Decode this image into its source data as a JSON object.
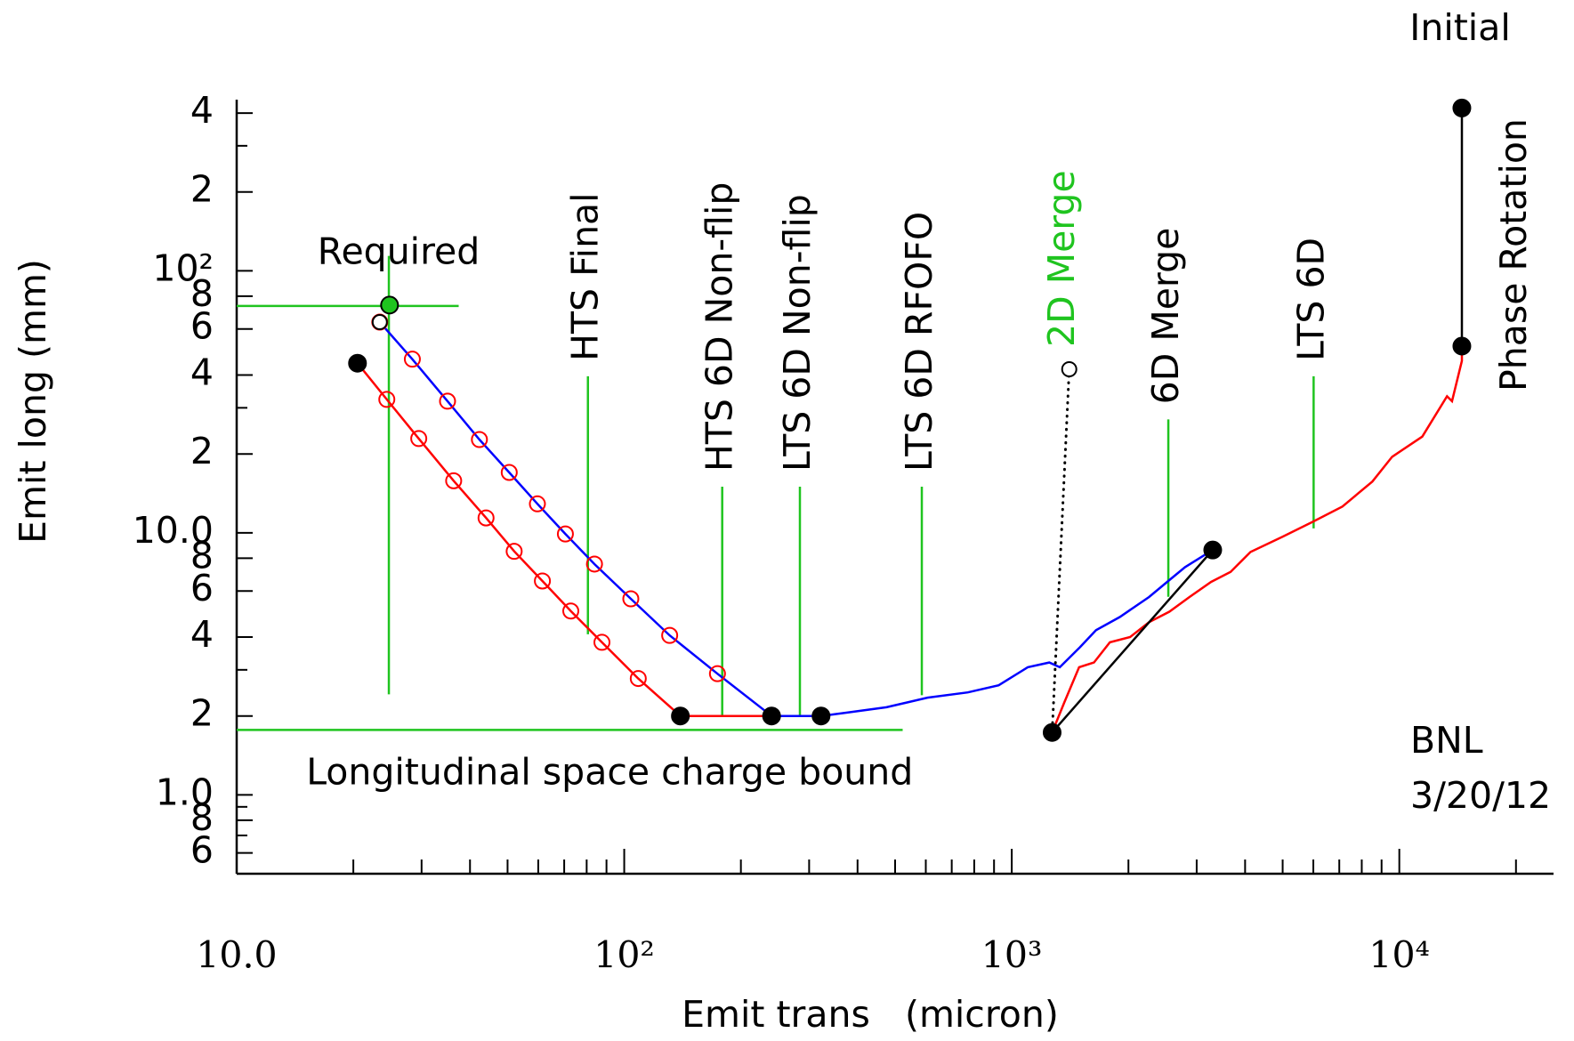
{
  "chart_data": {
    "type": "line",
    "x_label": "Emit trans   (micron)",
    "y_label": "Emit long (mm)",
    "x_log": true,
    "y_log": true,
    "xlim": [
      10,
      25000
    ],
    "ylim": [
      0.5,
      450
    ],
    "xticks": [
      {
        "value": 10,
        "label": "10.0"
      },
      {
        "value": 100,
        "label": "10²"
      },
      {
        "value": 1000,
        "label": "10³"
      },
      {
        "value": 10000,
        "label": "10⁴"
      }
    ],
    "xminor_ticks": [
      20,
      30,
      40,
      50,
      60,
      70,
      80,
      90,
      200,
      300,
      400,
      500,
      600,
      700,
      800,
      900,
      2000,
      3000,
      4000,
      5000,
      6000,
      7000,
      8000,
      9000,
      20000
    ],
    "yticks": [
      {
        "value": 400,
        "label": "4"
      },
      {
        "value": 200,
        "label": "2"
      },
      {
        "value": 100,
        "label": "10²"
      },
      {
        "value": 80,
        "label": "8"
      },
      {
        "value": 60,
        "label": "6"
      },
      {
        "value": 40,
        "label": "4"
      },
      {
        "value": 20,
        "label": "2"
      },
      {
        "value": 10,
        "label": "10.0"
      },
      8,
      6,
      4,
      2,
      {
        "value": 1,
        "label": "1.0"
      },
      {
        "value": 0.8,
        "label": "8"
      },
      {
        "value": 0.6,
        "label": "6"
      }
    ],
    "yminor_ticks": [
      300,
      30,
      3,
      0.9,
      0.7
    ],
    "series": [
      {
        "color": "#ff0000",
        "marker": "open-circle",
        "x": [
          20.5,
          24.4,
          29.5,
          36.3,
          44,
          52,
          61.5,
          72.8,
          87.6,
          108.7,
          139.6,
          240
        ],
        "values": [
          44.4,
          32.3,
          22.9,
          15.8,
          11.4,
          8.5,
          6.55,
          5.03,
          3.82,
          2.78,
          2.0,
          2.0
        ]
      },
      {
        "color": "#0000ff",
        "marker": "open-circle",
        "marker_color": "#ff0000",
        "x": [
          23.4,
          28.4,
          35,
          42.3,
          50.5,
          59.7,
          70.5,
          83.8,
          104,
          131,
          174,
          240
        ],
        "values": [
          63.7,
          46,
          31.8,
          22.7,
          17,
          12.9,
          9.9,
          7.6,
          5.6,
          4.06,
          2.9,
          2.0
        ]
      },
      {
        "color": "#0000ff",
        "x": [
          240,
          322,
          376,
          475,
          606,
          770,
          925,
          1100,
          1250,
          1330,
          1500,
          1650,
          1900,
          2260,
          2550,
          2800,
          3300
        ],
        "values": [
          2.0,
          2.0,
          2.06,
          2.16,
          2.35,
          2.46,
          2.62,
          3.07,
          3.2,
          3.07,
          3.66,
          4.25,
          4.77,
          5.69,
          6.6,
          7.4,
          8.6
        ]
      },
      {
        "color": "#ff0000",
        "x": [
          1271,
          1366,
          1492,
          1630,
          1791,
          2020,
          2260,
          2550,
          2880,
          3270,
          3670,
          4130,
          4990,
          5960,
          7130,
          8520,
          9580,
          11460,
          13280,
          13680,
          14500,
          14500
        ],
        "values": [
          1.73,
          2.25,
          3.07,
          3.2,
          3.82,
          4.0,
          4.56,
          5.0,
          5.7,
          6.5,
          7.1,
          8.45,
          9.65,
          11.0,
          12.6,
          15.7,
          19.5,
          23.3,
          33.2,
          31.8,
          45.3,
          51.6
        ]
      },
      {
        "color": "#000000",
        "x": [
          1271,
          3300
        ],
        "values": [
          1.73,
          8.6
        ]
      },
      {
        "color": "#000000",
        "x": [
          14500,
          14500
        ],
        "values": [
          418,
          51.6
        ]
      },
      {
        "color": "#000000",
        "dash": "dotted",
        "x": [
          1407,
          1271
        ],
        "values": [
          42.1,
          1.73
        ]
      }
    ],
    "points": [
      {
        "style": "filled",
        "color": "#000000",
        "x": [
          20.5,
          139.6,
          240,
          322,
          1271,
          3300,
          14500,
          14500
        ],
        "y": [
          44.4,
          2.0,
          2.0,
          2.0,
          1.73,
          8.6,
          418,
          51.6
        ]
      },
      {
        "style": "open",
        "color": "#000000",
        "x": [
          23.4,
          1407
        ],
        "y": [
          63.7,
          42.1
        ]
      },
      {
        "style": "filled",
        "color": "#1fc41f",
        "x": [
          24.8
        ],
        "y": [
          74
        ]
      }
    ],
    "guide_color": "#1fc41f",
    "guides": [
      {
        "label": "Required",
        "x": [
          24.7,
          24.7
        ],
        "y": [
          114,
          2.42
        ]
      },
      {
        "x": [
          10,
          37.4
        ],
        "y": [
          73.4,
          73.4
        ]
      },
      {
        "label": "Longitudinal space charge bound",
        "x": [
          10,
          523
        ],
        "y": [
          1.77,
          1.77
        ]
      },
      {
        "label": "HTS Final",
        "x": [
          80.6,
          80.6
        ],
        "y": [
          4.1,
          39.6
        ]
      },
      {
        "label": "HTS 6D Non-flip",
        "x": [
          179,
          179
        ],
        "y": [
          2.0,
          15
        ]
      },
      {
        "label": "LTS 6D Non-flip",
        "x": [
          284,
          284
        ],
        "y": [
          2.0,
          15
        ]
      },
      {
        "label": "LTS 6D RFOFO",
        "x": [
          586,
          586
        ],
        "y": [
          2.4,
          15
        ]
      },
      {
        "label": "6D Merge",
        "x": [
          2535,
          2535
        ],
        "y": [
          5.7,
          27.1
        ]
      },
      {
        "label": "LTS 6D",
        "x": [
          6010,
          6010
        ],
        "y": [
          10.4,
          39.6
        ]
      }
    ],
    "annotations": [
      {
        "text": "2D Merge",
        "color": "#1fc41f"
      },
      {
        "text": "Initial"
      },
      {
        "text": "Phase Rotation"
      },
      {
        "text": "BNL"
      },
      {
        "text": "3/20/12"
      }
    ]
  }
}
